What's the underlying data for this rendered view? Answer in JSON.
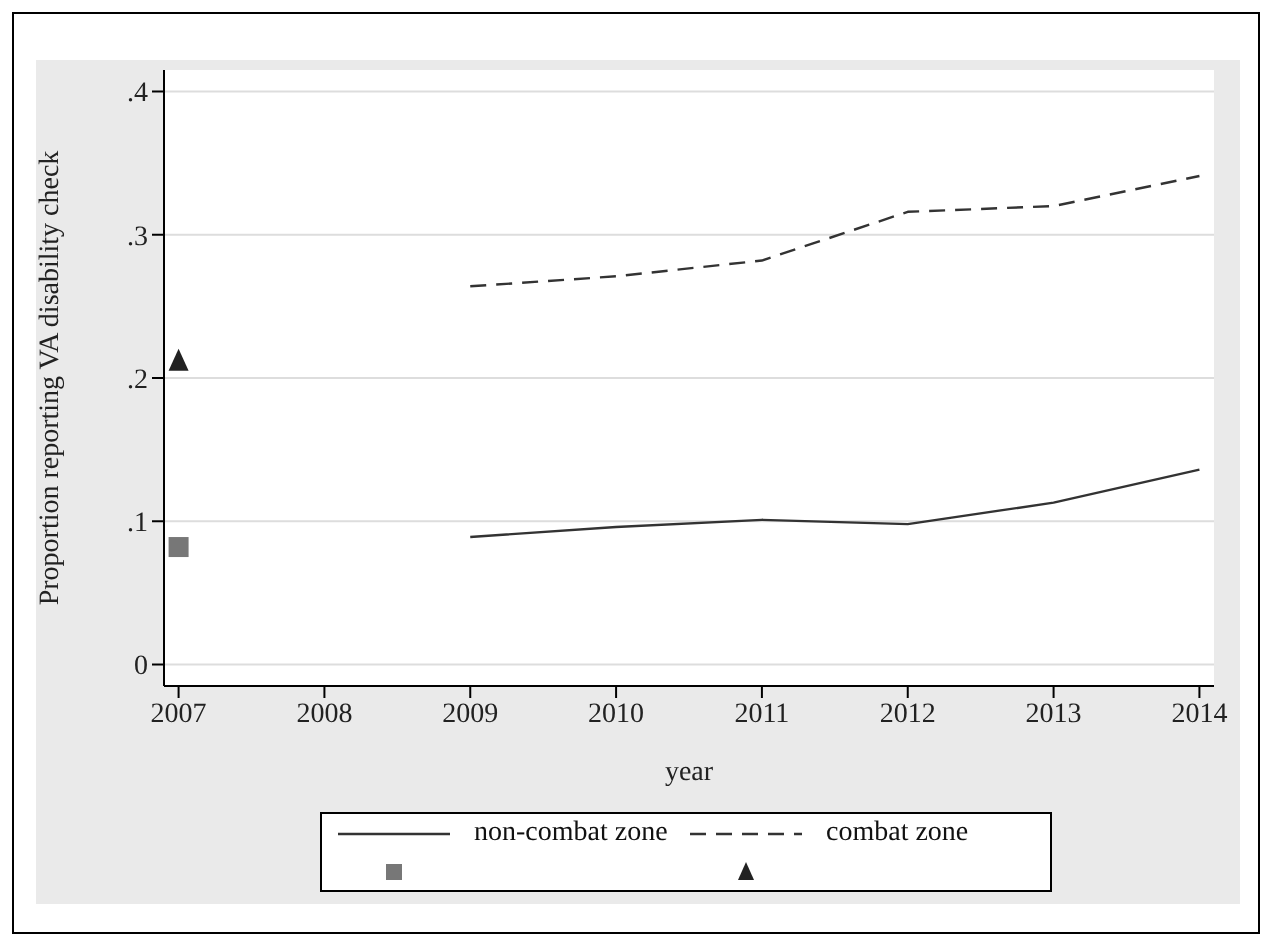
{
  "chart_data": {
    "type": "line",
    "xlabel": "year",
    "ylabel": "Proportion reporting VA disability check",
    "xlim": [
      2006.9,
      2014.1
    ],
    "xticks": [
      2007,
      2008,
      2009,
      2010,
      2011,
      2012,
      2013,
      2014
    ],
    "ylim": [
      -0.015,
      0.415
    ],
    "yticks": [
      0,
      {
        "value": 0.1,
        "label": ".1"
      },
      {
        "value": 0.2,
        "label": ".2"
      },
      {
        "value": 0.3,
        "label": ".3"
      },
      {
        "value": 0.4,
        "label": ".4"
      }
    ],
    "grid": "y",
    "legend": "bottom",
    "series": [
      {
        "name": "non-combat zone",
        "line_style": "solid",
        "color": "#333333",
        "x": [
          2009,
          2010,
          2011,
          2012,
          2013,
          2014
        ],
        "values": [
          0.089,
          0.096,
          0.101,
          0.098,
          0.113,
          0.136
        ]
      },
      {
        "name": "combat zone",
        "line_style": "dashed",
        "color": "#333333",
        "x": [
          2009,
          2010,
          2011,
          2012,
          2013,
          2014
        ],
        "values": [
          0.264,
          0.271,
          0.282,
          0.316,
          0.32,
          0.341
        ]
      },
      {
        "type": "scatter",
        "marker": "square",
        "color": "#777777",
        "x": [
          2007
        ],
        "values": [
          0.082
        ]
      },
      {
        "type": "scatter",
        "marker": "triangle",
        "color": "#222222",
        "x": [
          2007
        ],
        "values": [
          0.212
        ]
      }
    ]
  }
}
